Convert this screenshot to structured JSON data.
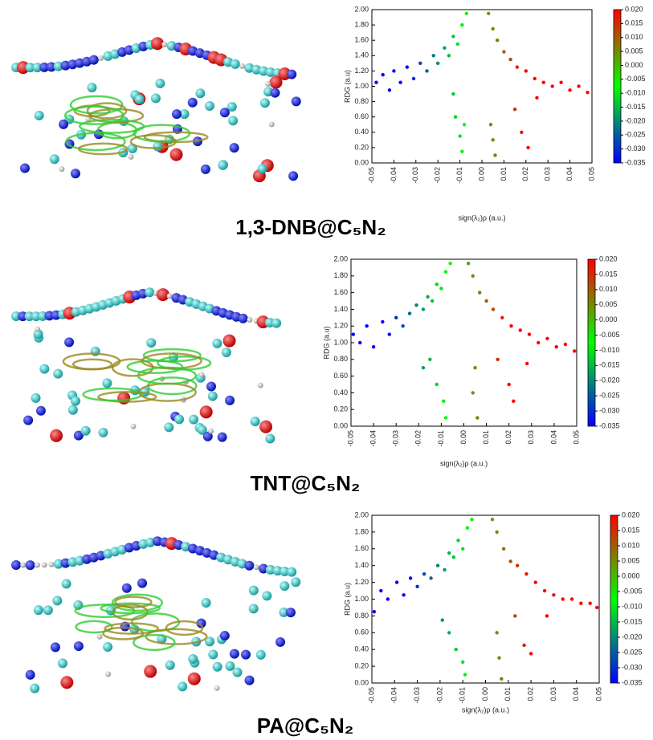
{
  "chart_data": [
    {
      "type": "scatter",
      "label": "1,3-DNB@C₅N₂",
      "xlabel": "sign(λ₂)ρ (a.u.)",
      "ylabel": "RDG (a.u)",
      "xlim": [
        -0.05,
        0.05
      ],
      "ylim": [
        0,
        2
      ],
      "xticks": [
        -0.05,
        -0.04,
        -0.03,
        -0.02,
        -0.01,
        {
          "value": 0,
          "label": "0.00"
        },
        0.01,
        0.02,
        0.03,
        0.04,
        0.05
      ],
      "yticks": [
        {
          "value": 0,
          "label": "0.00"
        },
        {
          "value": 0.2,
          "label": "0.20"
        },
        {
          "value": 0.4,
          "label": "0.40"
        },
        {
          "value": 0.6,
          "label": "0.60"
        },
        {
          "value": 0.8,
          "label": "0.80"
        },
        {
          "value": 1,
          "label": "1.00"
        },
        {
          "value": 1.2,
          "label": "1.20"
        },
        {
          "value": 1.4,
          "label": "1.40"
        },
        {
          "value": 1.6,
          "label": "1.60"
        },
        {
          "value": 1.8,
          "label": "1.80"
        },
        {
          "value": 2,
          "label": "2.00"
        }
      ],
      "clim": [
        -0.035,
        0.02
      ],
      "cticks": [
        {
          "value": -0.035,
          "label": "-0.035"
        },
        {
          "value": -0.03,
          "label": "-0.030"
        },
        {
          "value": -0.025,
          "label": "-0.025"
        },
        {
          "value": -0.02,
          "label": "-0.020"
        },
        {
          "value": -0.015,
          "label": "-0.015"
        },
        {
          "value": -0.01,
          "label": "-0.010"
        },
        {
          "value": -0.005,
          "label": "-0.005"
        },
        {
          "value": 0,
          "label": "0.000"
        },
        {
          "value": 0.005,
          "label": "0.005"
        },
        {
          "value": 0.01,
          "label": "0.010"
        },
        {
          "value": 0.015,
          "label": "0.015"
        },
        {
          "value": 0.02,
          "label": "0.020"
        }
      ],
      "colormap": [
        "#0000ff",
        "#00ff00",
        "#ff0000"
      ],
      "x": [
        -0.048,
        -0.045,
        -0.042,
        -0.04,
        -0.037,
        -0.034,
        -0.031,
        -0.028,
        -0.025,
        -0.022,
        -0.02,
        -0.017,
        -0.015,
        -0.013,
        -0.011,
        -0.009,
        -0.007,
        -0.012,
        -0.01,
        -0.008,
        -0.009,
        -0.013,
        0.003,
        0.005,
        0.007,
        0.01,
        0.013,
        0.016,
        0.02,
        0.024,
        0.028,
        0.032,
        0.036,
        0.04,
        0.044,
        0.048,
        0.005,
        0.006,
        0.004,
        0.018,
        0.021,
        0.015,
        0.025
      ],
      "values": [
        1.05,
        1.15,
        0.95,
        1.2,
        1.05,
        1.25,
        1.1,
        1.3,
        1.2,
        1.4,
        1.3,
        1.5,
        1.4,
        1.65,
        1.55,
        1.8,
        1.95,
        0.6,
        0.35,
        0.5,
        0.15,
        0.9,
        1.95,
        1.75,
        1.6,
        1.45,
        1.35,
        1.25,
        1.2,
        1.1,
        1.05,
        1.0,
        1.05,
        0.95,
        1.0,
        0.92,
        0.3,
        0.1,
        0.5,
        0.4,
        0.2,
        0.7,
        0.85
      ]
    },
    {
      "type": "scatter",
      "label": "TNT@C₅N₂",
      "xlabel": "sign(λ₂)ρ (a.u.)",
      "ylabel": "RDG (a.u)",
      "xlim": [
        -0.05,
        0.05
      ],
      "ylim": [
        0,
        2
      ],
      "xticks": [
        -0.05,
        -0.04,
        -0.03,
        -0.02,
        -0.01,
        {
          "value": 0,
          "label": "0.00"
        },
        0.01,
        0.02,
        0.03,
        0.04,
        0.05
      ],
      "yticks": [
        {
          "value": 0,
          "label": "0.00"
        },
        {
          "value": 0.2,
          "label": "0.20"
        },
        {
          "value": 0.4,
          "label": "0.40"
        },
        {
          "value": 0.6,
          "label": "0.60"
        },
        {
          "value": 0.8,
          "label": "0.80"
        },
        {
          "value": 1,
          "label": "1.00"
        },
        {
          "value": 1.2,
          "label": "1.20"
        },
        {
          "value": 1.4,
          "label": "1.40"
        },
        {
          "value": 1.6,
          "label": "1.60"
        },
        {
          "value": 1.8,
          "label": "1.80"
        },
        {
          "value": 2,
          "label": "2.00"
        }
      ],
      "clim": [
        -0.035,
        0.02
      ],
      "cticks": [
        {
          "value": -0.035,
          "label": "-0.035"
        },
        {
          "value": -0.03,
          "label": "-0.030"
        },
        {
          "value": -0.025,
          "label": "-0.025"
        },
        {
          "value": -0.02,
          "label": "-0.020"
        },
        {
          "value": -0.015,
          "label": "-0.015"
        },
        {
          "value": -0.01,
          "label": "-0.010"
        },
        {
          "value": -0.005,
          "label": "-0.005"
        },
        {
          "value": 0,
          "label": "0.000"
        },
        {
          "value": 0.005,
          "label": "0.005"
        },
        {
          "value": 0.01,
          "label": "0.010"
        },
        {
          "value": 0.015,
          "label": "0.015"
        },
        {
          "value": 0.02,
          "label": "0.020"
        }
      ],
      "colormap": [
        "#0000ff",
        "#00ff00",
        "#ff0000"
      ],
      "x": [
        -0.049,
        -0.046,
        -0.043,
        -0.04,
        -0.036,
        -0.033,
        -0.03,
        -0.027,
        -0.024,
        -0.021,
        -0.018,
        -0.016,
        -0.014,
        -0.012,
        -0.01,
        -0.008,
        -0.006,
        -0.015,
        -0.012,
        -0.009,
        -0.008,
        -0.018,
        0.002,
        0.004,
        0.007,
        0.01,
        0.013,
        0.017,
        0.021,
        0.025,
        0.029,
        0.033,
        0.037,
        0.041,
        0.045,
        0.049,
        0.004,
        0.006,
        0.005,
        0.02,
        0.022,
        0.015,
        0.028
      ],
      "values": [
        1.1,
        1.0,
        1.2,
        0.95,
        1.25,
        1.1,
        1.3,
        1.2,
        1.35,
        1.45,
        1.4,
        1.55,
        1.5,
        1.7,
        1.65,
        1.85,
        1.95,
        0.8,
        0.5,
        0.3,
        0.1,
        0.7,
        1.95,
        1.8,
        1.6,
        1.5,
        1.4,
        1.3,
        1.2,
        1.15,
        1.1,
        1.0,
        1.05,
        0.95,
        0.98,
        0.9,
        0.4,
        0.1,
        0.7,
        0.5,
        0.3,
        0.8,
        0.75
      ]
    },
    {
      "type": "scatter",
      "label": "PA@C₅N₂",
      "xlabel": "sign(λ₂)ρ (a.u.)",
      "ylabel": "RDG (a.u)",
      "xlim": [
        -0.05,
        0.05
      ],
      "ylim": [
        0,
        2
      ],
      "xticks": [
        -0.05,
        -0.04,
        -0.03,
        -0.02,
        -0.01,
        {
          "value": 0,
          "label": "0.00"
        },
        0.01,
        0.02,
        0.03,
        0.04,
        0.05
      ],
      "yticks": [
        {
          "value": 0,
          "label": "0.00"
        },
        {
          "value": 0.2,
          "label": "0.20"
        },
        {
          "value": 0.4,
          "label": "0.40"
        },
        {
          "value": 0.6,
          "label": "0.60"
        },
        {
          "value": 0.8,
          "label": "0.80"
        },
        {
          "value": 1,
          "label": "1.00"
        },
        {
          "value": 1.2,
          "label": "1.20"
        },
        {
          "value": 1.4,
          "label": "1.40"
        },
        {
          "value": 1.6,
          "label": "1.60"
        },
        {
          "value": 1.8,
          "label": "1.80"
        },
        {
          "value": 2,
          "label": "2.00"
        }
      ],
      "clim": [
        -0.035,
        0.02
      ],
      "cticks": [
        {
          "value": -0.035,
          "label": "-0.035"
        },
        {
          "value": -0.03,
          "label": "-0.030"
        },
        {
          "value": -0.025,
          "label": "-0.025"
        },
        {
          "value": -0.02,
          "label": "-0.020"
        },
        {
          "value": -0.015,
          "label": "-0.015"
        },
        {
          "value": -0.01,
          "label": "-0.010"
        },
        {
          "value": -0.005,
          "label": "-0.005"
        },
        {
          "value": 0,
          "label": "0.000"
        },
        {
          "value": 0.005,
          "label": "0.005"
        },
        {
          "value": 0.01,
          "label": "0.010"
        },
        {
          "value": 0.015,
          "label": "0.015"
        },
        {
          "value": 0.02,
          "label": "0.020"
        }
      ],
      "colormap": [
        "#0000ff",
        "#00ff00",
        "#ff0000"
      ],
      "x": [
        -0.049,
        -0.046,
        -0.043,
        -0.039,
        -0.036,
        -0.033,
        -0.03,
        -0.027,
        -0.024,
        -0.021,
        -0.018,
        -0.016,
        -0.014,
        -0.012,
        -0.01,
        -0.008,
        -0.006,
        -0.016,
        -0.013,
        -0.01,
        -0.009,
        -0.019,
        0.003,
        0.005,
        0.008,
        0.011,
        0.014,
        0.018,
        0.022,
        0.026,
        0.03,
        0.034,
        0.038,
        0.042,
        0.046,
        0.049,
        0.006,
        0.007,
        0.005,
        0.017,
        0.02,
        0.013,
        0.027
      ],
      "values": [
        0.85,
        1.1,
        1.0,
        1.2,
        1.05,
        1.25,
        1.15,
        1.3,
        1.25,
        1.4,
        1.35,
        1.55,
        1.5,
        1.7,
        1.6,
        1.85,
        1.95,
        0.6,
        0.4,
        0.25,
        0.1,
        0.75,
        1.95,
        1.8,
        1.6,
        1.45,
        1.4,
        1.3,
        1.2,
        1.1,
        1.05,
        1.0,
        1.0,
        0.95,
        0.95,
        0.9,
        0.3,
        0.05,
        0.6,
        0.45,
        0.35,
        0.8,
        0.8
      ]
    }
  ]
}
